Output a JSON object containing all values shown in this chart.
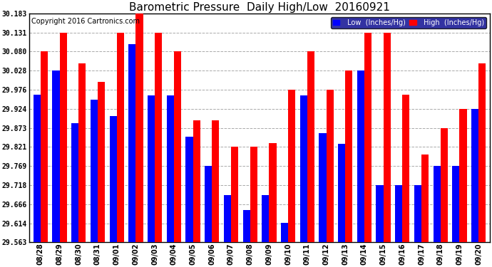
{
  "title": "Barometric Pressure  Daily High/Low  20160921",
  "copyright": "Copyright 2016 Cartronics.com",
  "dates": [
    "08/28",
    "08/29",
    "08/30",
    "08/31",
    "09/01",
    "09/02",
    "09/03",
    "09/04",
    "09/05",
    "09/06",
    "09/07",
    "09/08",
    "09/09",
    "09/10",
    "09/11",
    "09/12",
    "09/13",
    "09/14",
    "09/15",
    "09/16",
    "09/17",
    "09/18",
    "09/19",
    "09/20"
  ],
  "low_values": [
    29.963,
    30.028,
    29.885,
    29.95,
    29.905,
    30.1,
    29.96,
    29.96,
    29.848,
    29.769,
    29.69,
    29.651,
    29.69,
    29.615,
    29.96,
    29.858,
    29.83,
    30.028,
    29.718,
    29.718,
    29.718,
    29.769,
    29.769,
    29.924
  ],
  "high_values": [
    30.08,
    30.131,
    30.048,
    29.998,
    30.131,
    30.183,
    30.131,
    30.08,
    29.893,
    29.893,
    29.821,
    29.821,
    29.832,
    29.976,
    30.08,
    29.976,
    30.028,
    30.131,
    30.131,
    29.963,
    29.8,
    29.873,
    29.924,
    30.048
  ],
  "ylim_min": 29.563,
  "ylim_max": 30.183,
  "yticks": [
    29.563,
    29.614,
    29.666,
    29.718,
    29.769,
    29.821,
    29.873,
    29.924,
    29.976,
    30.028,
    30.08,
    30.131,
    30.183
  ],
  "low_color": "#0000ff",
  "high_color": "#ff0000",
  "bg_color": "#ffffff",
  "plot_bg_color": "#ffffff",
  "grid_color": "#aaaaaa",
  "bar_width": 0.38,
  "title_fontsize": 11,
  "copyright_fontsize": 7,
  "legend_bg_color": "#00008b",
  "legend_text_color": "#ffffff"
}
